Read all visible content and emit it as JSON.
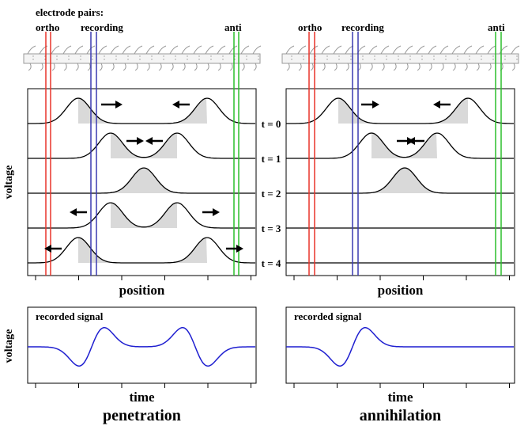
{
  "header": {
    "electrode_label": "electrode pairs:"
  },
  "y_label": "voltage",
  "signal_y_label": "voltage",
  "times": [
    "t = 0",
    "t = 1",
    "t = 2",
    "t = 3",
    "t = 4"
  ],
  "panels": [
    {
      "electrodes": [
        "ortho",
        "recording",
        "anti"
      ],
      "x_label": "position",
      "signal_label": "recorded signal",
      "signal_x_label": "time",
      "title": "penetration"
    },
    {
      "electrodes": [
        "ortho",
        "recording",
        "anti"
      ],
      "x_label": "position",
      "signal_label": "recorded signal",
      "signal_x_label": "time",
      "title": "annihilation"
    }
  ]
}
